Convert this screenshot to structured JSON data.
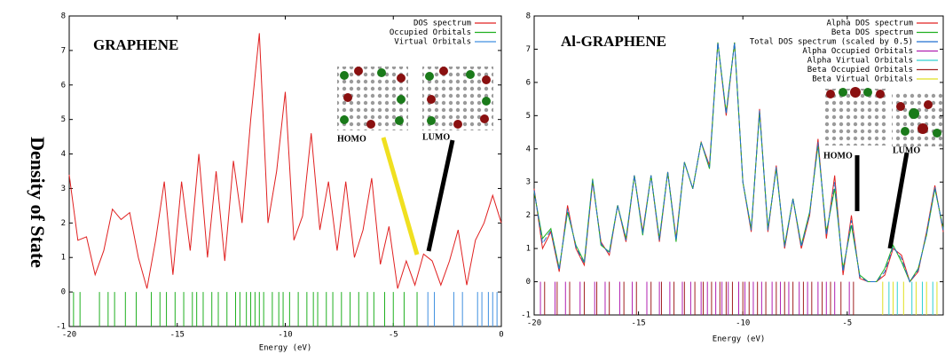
{
  "chart_data": [
    {
      "type": "line",
      "title": "GRAPHENE",
      "ylabel": "Density of State",
      "xlabel": "Energy (eV)",
      "annotations": [
        "HOMO",
        "LUMO"
      ],
      "xlim": [
        -20,
        0
      ],
      "ylim": [
        -1,
        8
      ],
      "xticks": [
        -20,
        -15,
        -10,
        -5,
        0
      ],
      "yticks": [
        -1,
        0,
        1,
        2,
        3,
        4,
        5,
        6,
        7,
        8
      ],
      "x": [
        -20,
        -19.6,
        -19.2,
        -18.8,
        -18.4,
        -18,
        -17.6,
        -17.2,
        -16.8,
        -16.4,
        -16,
        -15.6,
        -15.2,
        -14.8,
        -14.4,
        -14,
        -13.6,
        -13.2,
        -12.8,
        -12.4,
        -12,
        -11.6,
        -11.2,
        -10.8,
        -10.4,
        -10,
        -9.6,
        -9.2,
        -8.8,
        -8.4,
        -8,
        -7.6,
        -7.2,
        -6.8,
        -6.4,
        -6,
        -5.6,
        -5.2,
        -4.8,
        -4.4,
        -4,
        -3.6,
        -3.2,
        -2.8,
        -2.4,
        -2,
        -1.6,
        -1.2,
        -0.8,
        -0.4,
        0
      ],
      "series": [
        {
          "name": "DOS spectrum",
          "color": "#e02020",
          "values": [
            3.4,
            1.5,
            1.6,
            0.5,
            1.2,
            2.4,
            2.1,
            2.3,
            1.0,
            0.1,
            1.5,
            3.2,
            0.5,
            3.2,
            1.2,
            4.0,
            1.0,
            3.5,
            0.9,
            3.8,
            2.0,
            5.0,
            7.5,
            2.0,
            3.5,
            5.8,
            1.5,
            2.2,
            4.6,
            1.8,
            3.2,
            1.2,
            3.2,
            1.0,
            1.8,
            3.3,
            0.8,
            1.9,
            0.1,
            0.9,
            0.2,
            1.1,
            0.9,
            0.2,
            0.9,
            1.8,
            0.2,
            1.5,
            2.0,
            2.8,
            2.0
          ]
        }
      ],
      "orbitals": [
        {
          "name": "Occupied Orbitals",
          "color": "#20b020",
          "x": [
            -19.8,
            -19.5,
            -18.6,
            -18.2,
            -17.9,
            -17.4,
            -16.9,
            -16.2,
            -15.8,
            -15.5,
            -15.1,
            -14.7,
            -14.3,
            -14.1,
            -13.8,
            -13.4,
            -13.1,
            -12.7,
            -12.3,
            -12.1,
            -11.8,
            -11.6,
            -11.4,
            -11.2,
            -11.0,
            -10.6,
            -10.3,
            -10.1,
            -9.8,
            -9.4,
            -9.0,
            -8.7,
            -8.5,
            -8.1,
            -7.8,
            -7.4,
            -7.0,
            -6.6,
            -6.2,
            -5.9,
            -5.4,
            -5.0,
            -4.5,
            -3.9
          ]
        },
        {
          "name": "Virtual Orbitals",
          "color": "#4090e0",
          "x": [
            -3.4,
            -3.1,
            -2.2,
            -1.8,
            -1.1,
            -0.9,
            -0.6,
            -0.4,
            -0.2
          ]
        }
      ]
    },
    {
      "type": "line",
      "title": "Al-GRAPHENE",
      "xlabel": "Energy (eV)",
      "annotations": [
        "HOMO",
        "LUMO"
      ],
      "xlim": [
        -20,
        -0.4
      ],
      "ylim": [
        -1,
        8
      ],
      "xticks": [
        -20,
        -15,
        -10,
        -5
      ],
      "yticks": [
        -1,
        0,
        1,
        2,
        3,
        4,
        5,
        6,
        7,
        8
      ],
      "x": [
        -20,
        -19.6,
        -19.2,
        -18.8,
        -18.4,
        -18,
        -17.6,
        -17.2,
        -16.8,
        -16.4,
        -16,
        -15.6,
        -15.2,
        -14.8,
        -14.4,
        -14,
        -13.6,
        -13.2,
        -12.8,
        -12.4,
        -12,
        -11.6,
        -11.2,
        -10.8,
        -10.4,
        -10,
        -9.6,
        -9.2,
        -8.8,
        -8.4,
        -8,
        -7.6,
        -7.2,
        -6.8,
        -6.4,
        -6,
        -5.6,
        -5.2,
        -4.8,
        -4.4,
        -4,
        -3.6,
        -3.2,
        -2.8,
        -2.4,
        -2,
        -1.6,
        -1.2,
        -0.8,
        -0.4
      ],
      "series": [
        {
          "name": "Alpha DOS spectrum",
          "color": "#e02020",
          "values": [
            2.8,
            1.0,
            1.5,
            0.3,
            2.3,
            1.0,
            0.5,
            3.0,
            1.2,
            0.8,
            2.3,
            1.2,
            3.2,
            1.5,
            3.2,
            1.2,
            3.3,
            1.3,
            3.6,
            2.8,
            4.2,
            3.5,
            7.2,
            5.0,
            7.2,
            3.0,
            1.5,
            5.2,
            1.5,
            3.5,
            1.0,
            2.5,
            1.0,
            2.0,
            4.3,
            1.3,
            3.2,
            0.2,
            2.0,
            0.1,
            0.0,
            0.0,
            0.2,
            1.0,
            0.8,
            0.0,
            0.3,
            1.5,
            2.9,
            1.5
          ]
        },
        {
          "name": "Beta DOS spectrum",
          "color": "#20b020",
          "values": [
            2.7,
            1.3,
            1.6,
            0.4,
            2.1,
            1.1,
            0.6,
            3.1,
            1.1,
            0.9,
            2.3,
            1.3,
            3.2,
            1.4,
            3.2,
            1.3,
            3.3,
            1.2,
            3.6,
            2.8,
            4.2,
            3.4,
            7.2,
            5.1,
            7.2,
            3.0,
            1.6,
            5.1,
            1.6,
            3.4,
            1.1,
            2.5,
            1.1,
            2.1,
            4.1,
            1.5,
            2.8,
            0.4,
            1.7,
            0.2,
            0.0,
            0.0,
            0.4,
            1.1,
            0.6,
            0.0,
            0.4,
            1.4,
            2.8,
            1.6
          ]
        },
        {
          "name": "Total DOS spectrum (scaled by 0.5)",
          "color": "#2070d0",
          "values": [
            2.75,
            1.15,
            1.55,
            0.35,
            2.2,
            1.05,
            0.55,
            3.05,
            1.15,
            0.85,
            2.3,
            1.25,
            3.2,
            1.45,
            3.2,
            1.25,
            3.3,
            1.25,
            3.6,
            2.8,
            4.2,
            3.45,
            7.2,
            5.05,
            7.2,
            3.0,
            1.55,
            5.15,
            1.55,
            3.45,
            1.05,
            2.5,
            1.05,
            2.05,
            4.2,
            1.4,
            3.0,
            0.3,
            1.85,
            0.15,
            0.0,
            0.0,
            0.3,
            1.05,
            0.7,
            0.0,
            0.35,
            1.45,
            2.85,
            1.55
          ]
        }
      ],
      "orbitals": [
        {
          "name": "Alpha Occupied Orbitals",
          "color": "#b020b0",
          "x": [
            -19.7,
            -19.0,
            -18.5,
            -17.8,
            -17.1,
            -16.6,
            -15.9,
            -15.3,
            -14.6,
            -14.0,
            -13.5,
            -12.9,
            -12.5,
            -12.0,
            -11.7,
            -11.3,
            -11.0,
            -10.7,
            -10.2,
            -9.9,
            -9.5,
            -9.1,
            -8.6,
            -8.2,
            -7.8,
            -7.3,
            -6.9,
            -6.4,
            -6.0,
            -5.6,
            -4.9
          ]
        },
        {
          "name": "Alpha Virtual Orbitals",
          "color": "#30d0d0",
          "x": [
            -3.0,
            -2.6,
            -1.9,
            -1.4,
            -0.9
          ]
        },
        {
          "name": "Beta Occupied Orbitals",
          "color": "#a02020",
          "x": [
            -19.5,
            -18.9,
            -18.3,
            -17.6,
            -17.0,
            -16.4,
            -15.7,
            -15.1,
            -14.4,
            -13.9,
            -13.3,
            -12.8,
            -12.3,
            -11.9,
            -11.5,
            -11.1,
            -10.8,
            -10.5,
            -10.0,
            -9.7,
            -9.3,
            -8.9,
            -8.4,
            -8.0,
            -7.6,
            -7.1,
            -6.7,
            -6.2,
            -5.8,
            -5.3,
            -4.7
          ]
        },
        {
          "name": "Beta Virtual Orbitals",
          "color": "#e0e020",
          "x": [
            -3.3,
            -2.8,
            -2.3,
            -1.7,
            -1.2,
            -0.7
          ]
        }
      ]
    }
  ]
}
